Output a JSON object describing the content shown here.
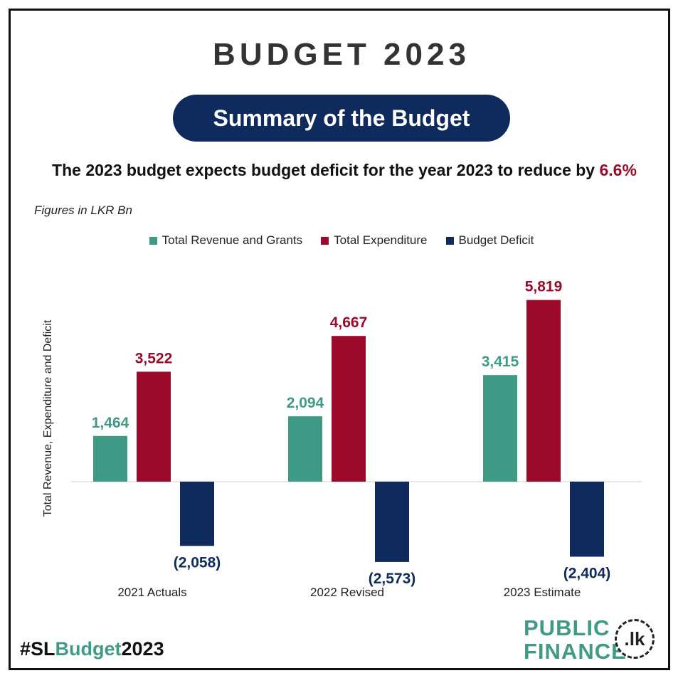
{
  "header": {
    "title": "BUDGET 2023",
    "pill": "Summary of the Budget",
    "headline_prefix": "The 2023 budget expects budget deficit for the year 2023 to reduce by ",
    "headline_pct": "6.6%",
    "unit_note": "Figures in LKR Bn"
  },
  "chart_data": {
    "type": "bar",
    "title": "",
    "ylabel": "Total Revenue, Expenditure  and Deficit",
    "xlabel": "",
    "categories": [
      "2021 Actuals",
      "2022 Revised",
      "2023 Estimate"
    ],
    "series": [
      {
        "name": "Total Revenue and Grants",
        "color": "#3f9b86",
        "values": [
          1464,
          2094,
          3415
        ],
        "labels": [
          "1,464",
          "2,094",
          "3,415"
        ]
      },
      {
        "name": "Total Expenditure",
        "color": "#9b0a2a",
        "values": [
          3522,
          4667,
          5819
        ],
        "labels": [
          "3,522",
          "4,667",
          "5,819"
        ]
      },
      {
        "name": "Budget Deficit",
        "color": "#0f2a5c",
        "values": [
          -2058,
          -2573,
          -2404
        ],
        "labels": [
          "(2,058)",
          "(2,573)",
          "(2,404)"
        ]
      }
    ],
    "ylim": [
      -3000,
      7000
    ],
    "grid": false,
    "legend": "top-center"
  },
  "footer": {
    "hashtag_a": "#SL",
    "hashtag_b": "Budget",
    "hashtag_c": "2023",
    "logo_line1": "PUBLIC",
    "logo_line2": "FINANCE",
    "logo_badge": ".lk"
  }
}
